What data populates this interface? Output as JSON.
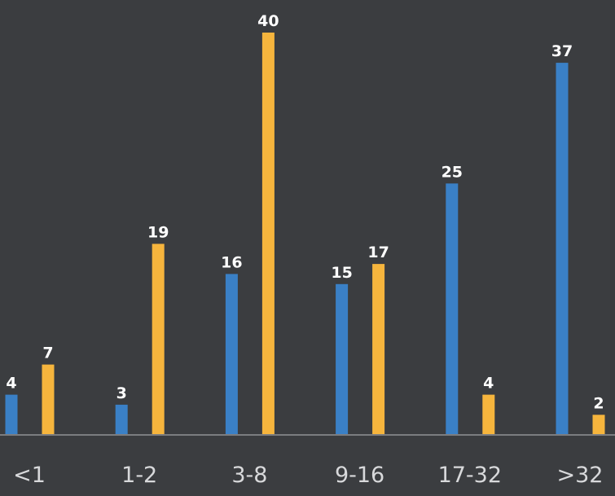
{
  "chart_data": {
    "type": "bar",
    "title": "",
    "xlabel": "",
    "ylabel": "",
    "categories": [
      "<1",
      "1-2",
      "3-8",
      "9-16",
      "17-32",
      ">32"
    ],
    "series": [
      {
        "values": [
          4,
          3,
          16,
          15,
          25,
          37
        ],
        "color": "#3a80c6"
      },
      {
        "values": [
          7,
          19,
          40,
          17,
          4,
          2
        ],
        "color": "#f6b53d"
      }
    ],
    "ylim": [
      0,
      40
    ],
    "grid": false,
    "legend": "none",
    "background": "#3b3d40",
    "axis_color": "#7b7d80"
  }
}
